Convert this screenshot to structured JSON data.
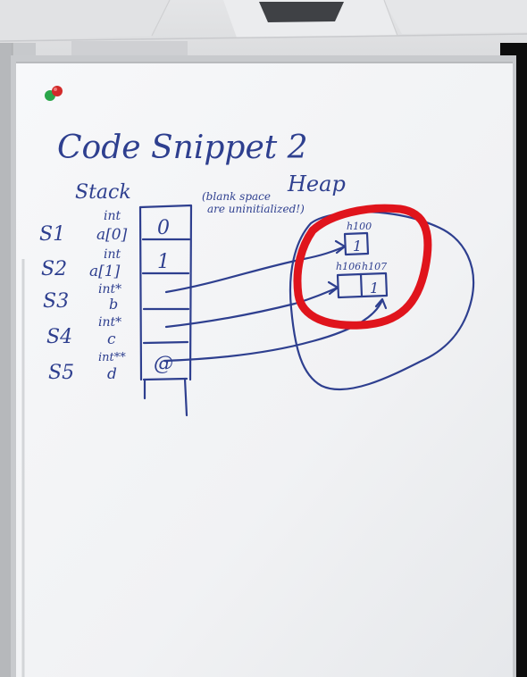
{
  "whiteboard": {
    "title": "Code Snippet 2",
    "stack_heading": "Stack",
    "heap_heading": "Heap",
    "note_line1": "(blank space",
    "note_line2": "are uninitialized!)",
    "stack_rows": [
      {
        "slot": "S1",
        "type": "int",
        "name": "a[0]",
        "value": "0"
      },
      {
        "slot": "S2",
        "type": "int",
        "name": "a[1]",
        "value": "1"
      },
      {
        "slot": "S3",
        "type": "int*",
        "name": "b",
        "value": ""
      },
      {
        "slot": "S4",
        "type": "int*",
        "name": "c",
        "value": ""
      },
      {
        "slot": "S5",
        "type": "int**",
        "name": "d",
        "value": "@"
      }
    ],
    "heap_cells": [
      {
        "address": "h100",
        "value": "1"
      },
      {
        "address": "h106",
        "value": ""
      },
      {
        "address": "h107",
        "value": "1"
      }
    ]
  },
  "colors": {
    "marker_ink": "#2e3f8f",
    "highlight": "#e0141c",
    "board": "#f4f5f7",
    "ceiling": "#e9eaec"
  }
}
